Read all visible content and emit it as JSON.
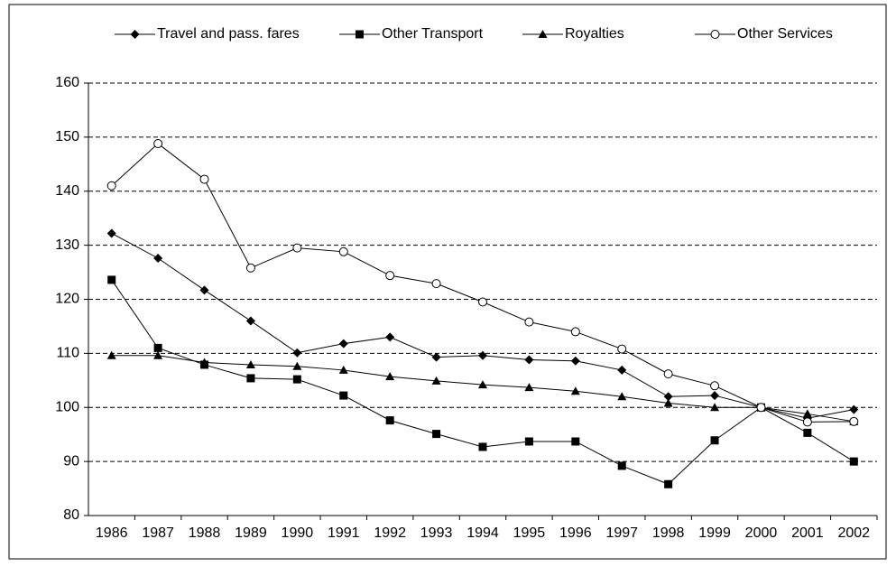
{
  "chart_data": {
    "type": "line",
    "categories": [
      "1986",
      "1987",
      "1988",
      "1989",
      "1990",
      "1991",
      "1992",
      "1993",
      "1994",
      "1995",
      "1996",
      "1997",
      "1998",
      "1999",
      "2000",
      "2001",
      "2002"
    ],
    "series": [
      {
        "name": "Travel and pass. fares",
        "color": "#000000",
        "marker": "diamond",
        "values": [
          132.2,
          127.6,
          121.7,
          116,
          110.1,
          111.8,
          113,
          109.3,
          109.6,
          108.8,
          108.6,
          106.9,
          102,
          102.2,
          100,
          98,
          99.6
        ]
      },
      {
        "name": "Other Transport",
        "color": "#000000",
        "marker": "square",
        "values": [
          123.6,
          111,
          107.9,
          105.4,
          105.2,
          102.2,
          97.6,
          95.1,
          92.7,
          93.7,
          93.7,
          89.2,
          85.8,
          93.9,
          100,
          95.3,
          90
        ]
      },
      {
        "name": "Royalties",
        "color": "#000000",
        "marker": "triangle",
        "values": [
          109.6,
          109.6,
          108.3,
          107.9,
          107.6,
          106.9,
          105.7,
          104.9,
          104.2,
          103.7,
          103,
          102,
          100.8,
          100,
          100,
          98.8,
          97.4
        ]
      },
      {
        "name": "Other Services",
        "color": "#000000",
        "marker": "circle",
        "values": [
          141,
          148.8,
          142.2,
          125.8,
          129.5,
          128.8,
          124.4,
          122.9,
          119.5,
          115.8,
          114,
          110.8,
          106.2,
          104,
          100,
          97.3,
          97.4
        ]
      }
    ],
    "ylim": [
      80,
      160
    ],
    "yticks": [
      80,
      90,
      100,
      110,
      120,
      130,
      140,
      150,
      160
    ],
    "grid": true,
    "legend": "top"
  }
}
